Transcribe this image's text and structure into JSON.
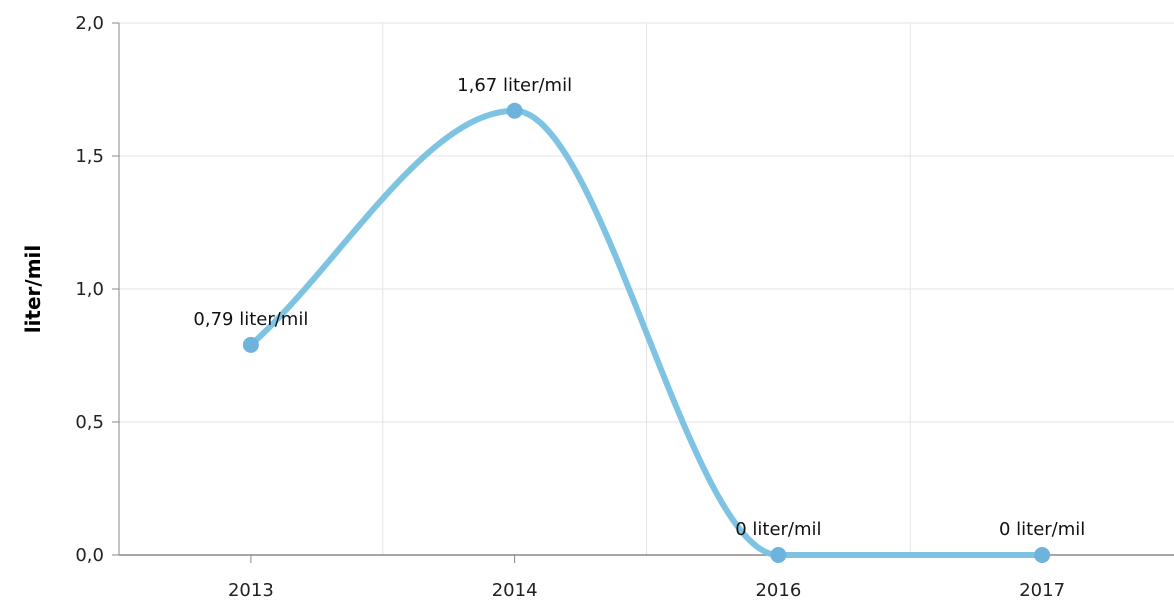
{
  "chart_data": {
    "type": "line",
    "title": "",
    "xlabel": "",
    "ylabel": "liter/mil",
    "categories": [
      "2013",
      "2014",
      "2016",
      "2017"
    ],
    "series": [
      {
        "values": [
          0.79,
          1.67,
          0,
          0
        ],
        "data_labels": [
          "0,79 liter/mil",
          "1,67 liter/mil",
          "0 liter/mil",
          "0 liter/mil"
        ]
      }
    ],
    "ylim": [
      0,
      2.0
    ],
    "yticks": [
      0,
      0.5,
      1.0,
      1.5,
      2.0
    ],
    "ytick_labels": [
      "0,0",
      "0,5",
      "1,0",
      "1,5",
      "2,0"
    ],
    "grid": true,
    "smooth": true,
    "line_color": "#7fc3e3",
    "marker_color": "#6db3dc",
    "grid_color": "#e3e3e3",
    "axis_color": "#888888"
  }
}
